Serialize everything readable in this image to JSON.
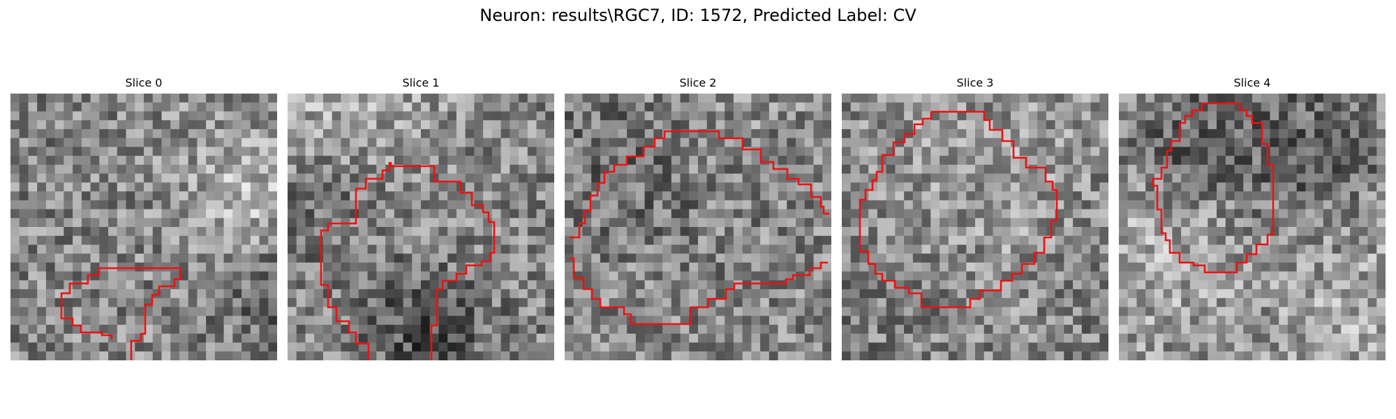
{
  "figure": {
    "title": "Neuron: results\\RGC7, ID: 1572, Predicted Label: CV"
  },
  "panels": [
    {
      "title": "Slice 0"
    },
    {
      "title": "Slice 1"
    },
    {
      "title": "Slice 2"
    },
    {
      "title": "Slice 3"
    },
    {
      "title": "Slice 4"
    }
  ],
  "colors": {
    "outline": "#ee1111",
    "colormap": "grayscale"
  }
}
